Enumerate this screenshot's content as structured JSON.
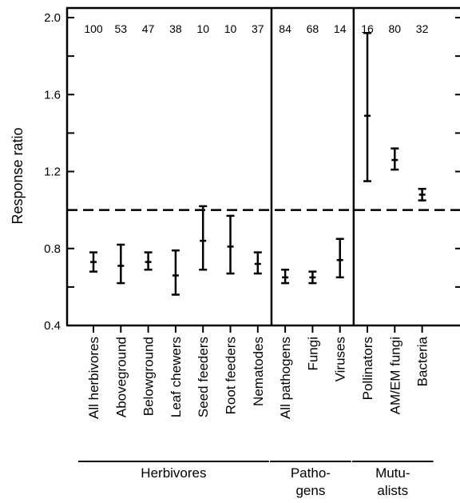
{
  "chart_data": {
    "type": "errorbar",
    "ylabel": "Response ratio",
    "ylim": [
      0.4,
      2.05
    ],
    "yticks": [
      0.4,
      0.8,
      1.2,
      1.6,
      2.0
    ],
    "ytick_labels": [
      "0.4",
      "0.8",
      "1.2",
      "1.6",
      "2.0"
    ],
    "reference_line": 1.0,
    "grid": false,
    "categories": [
      {
        "label": "All herbivores",
        "group": "Herbivores",
        "n": "100",
        "mean": 0.73,
        "lower": 0.68,
        "upper": 0.78
      },
      {
        "label": "Aboveground",
        "group": "Herbivores",
        "n": "53",
        "mean": 0.71,
        "lower": 0.62,
        "upper": 0.82
      },
      {
        "label": "Belowground",
        "group": "Herbivores",
        "n": "47",
        "mean": 0.73,
        "lower": 0.69,
        "upper": 0.78
      },
      {
        "label": "Leaf chewers",
        "group": "Herbivores",
        "n": "38",
        "mean": 0.66,
        "lower": 0.56,
        "upper": 0.79
      },
      {
        "label": "Seed feeders",
        "group": "Herbivores",
        "n": "10",
        "mean": 0.84,
        "lower": 0.69,
        "upper": 1.02
      },
      {
        "label": "Root feeders",
        "group": "Herbivores",
        "n": "10",
        "mean": 0.81,
        "lower": 0.67,
        "upper": 0.97
      },
      {
        "label": "Nematodes",
        "group": "Herbivores",
        "n": "37",
        "mean": 0.72,
        "lower": 0.67,
        "upper": 0.78
      },
      {
        "label": "All pathogens",
        "group": "Pathogens",
        "n": "84",
        "mean": 0.65,
        "lower": 0.62,
        "upper": 0.69
      },
      {
        "label": "Fungi",
        "group": "Pathogens",
        "n": "68",
        "mean": 0.65,
        "lower": 0.62,
        "upper": 0.68
      },
      {
        "label": "Viruses",
        "group": "Pathogens",
        "n": "14",
        "mean": 0.74,
        "lower": 0.65,
        "upper": 0.85
      },
      {
        "label": "Pollinators",
        "group": "Mutualists",
        "n": "16",
        "mean": 1.49,
        "lower": 1.15,
        "upper": 1.92
      },
      {
        "label": "AM/EM fungi",
        "group": "Mutualists",
        "n": "80",
        "mean": 1.26,
        "lower": 1.21,
        "upper": 1.32
      },
      {
        "label": "Bacteria",
        "group": "Mutualists",
        "n": "32",
        "mean": 1.08,
        "lower": 1.05,
        "upper": 1.11
      }
    ],
    "groups": [
      {
        "name": "Herbivores",
        "label_lines": [
          "Herbivores"
        ]
      },
      {
        "name": "Pathogens",
        "label_lines": [
          "Patho-",
          "gens"
        ]
      },
      {
        "name": "Mutualists",
        "label_lines": [
          "Mutu-",
          "alists"
        ]
      }
    ]
  }
}
